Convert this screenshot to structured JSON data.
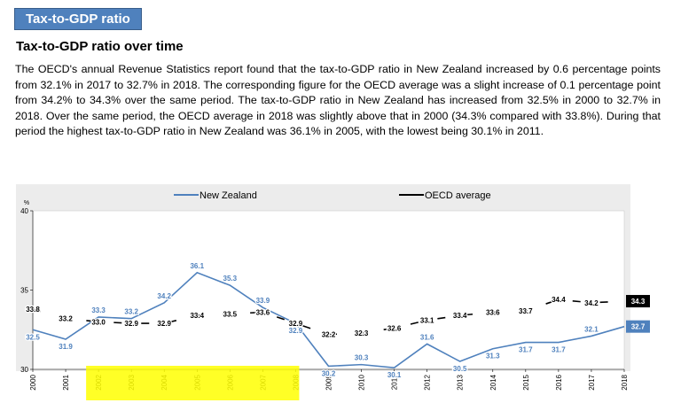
{
  "header": {
    "section_tag": "Tax-to-GDP ratio",
    "subtitle": "Tax-to-GDP ratio over time",
    "paragraph": "The OECD's annual Revenue Statistics report found that the tax-to-GDP ratio in New Zealand increased by 0.6 percentage points from 32.1% in 2017 to 32.7% in 2018. The corresponding figure for the OECD average was a slight increase of 0.1 percentage point from 34.2% to 34.3% over the same period. The tax-to-GDP ratio in New Zealand has increased from 32.5% in 2000 to 32.7% in 2018. Over the same period, the OECD average in 2018 was slightly above that in 2000 (34.3% compared with 33.8%). During that period the highest tax-to-GDP ratio in New Zealand was 36.1% in 2005, with the lowest being 30.1% in 2011."
  },
  "chart_data": {
    "type": "line",
    "ylabel": "%",
    "ylim": [
      30,
      40
    ],
    "yticks": [
      "30",
      "35",
      "40"
    ],
    "grid": false,
    "legend_position": "top",
    "x": [
      "2000",
      "2001",
      "2002",
      "2003",
      "2004",
      "2005",
      "2006",
      "2007",
      "2008",
      "2009",
      "2010",
      "2011",
      "2012",
      "2013",
      "2014",
      "2015",
      "2016",
      "2017",
      "2018"
    ],
    "series": [
      {
        "name": "New Zealand",
        "color": "#4f81bd",
        "values": [
          32.5,
          31.9,
          33.3,
          33.2,
          34.2,
          36.1,
          35.3,
          33.9,
          32.9,
          30.2,
          30.3,
          30.1,
          31.6,
          30.5,
          31.3,
          31.7,
          31.7,
          32.1,
          32.7
        ],
        "labels": [
          "32.5",
          "31.9",
          "33.3",
          "33.2",
          "34.2",
          "36.1",
          "35.3",
          "33.9",
          "32.9",
          "30.2",
          "30.3",
          "30.1",
          "31.6",
          "30.5",
          "31.3",
          "31.7",
          "31.7",
          "32.1",
          "32.7"
        ]
      },
      {
        "name": "OECD average",
        "color": "#000000",
        "values": [
          33.8,
          33.2,
          33.0,
          32.9,
          32.9,
          33.4,
          33.5,
          33.6,
          32.9,
          32.2,
          32.3,
          32.6,
          33.1,
          33.4,
          33.6,
          33.7,
          34.4,
          34.2,
          34.3
        ],
        "labels": [
          "33.8",
          "33.2",
          "33.0",
          "32.9",
          "32.9",
          "33.4",
          "33.5",
          "33.6",
          "32.9",
          "32.2",
          "32.3",
          "32.6",
          "33.1",
          "33.4",
          "33.6",
          "33.7",
          "34.4",
          "34.2",
          "34.3"
        ]
      }
    ],
    "highlight": {
      "from": "2002",
      "to": "2008",
      "color": "#ffff00"
    }
  }
}
